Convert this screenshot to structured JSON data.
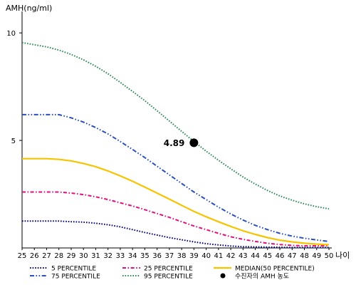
{
  "chart_data": {
    "type": "line",
    "ylabel": "AMH(ng/ml)",
    "xlabel": "나이",
    "x": [
      25,
      26,
      27,
      28,
      29,
      30,
      31,
      32,
      33,
      34,
      35,
      36,
      37,
      38,
      39,
      40,
      41,
      42,
      43,
      44,
      45,
      46,
      47,
      48,
      49,
      50
    ],
    "xlim": [
      25,
      50
    ],
    "ylim": [
      0,
      11
    ],
    "yticks": [
      5,
      10
    ],
    "grid": false,
    "legend_placement": "bottom",
    "series": [
      {
        "name": "5 PERCENTILE",
        "color": "#000080",
        "style": "dotted",
        "values": [
          1.25,
          1.25,
          1.25,
          1.25,
          1.22,
          1.2,
          1.15,
          1.08,
          0.98,
          0.85,
          0.72,
          0.6,
          0.48,
          0.38,
          0.28,
          0.2,
          0.14,
          0.09,
          0.06,
          0.05,
          0.04,
          0.03,
          0.02,
          0.02,
          0.02,
          0.02
        ]
      },
      {
        "name": "25 PERCENTILE",
        "color": "#e0117e",
        "style": "dashdot",
        "values": [
          2.6,
          2.6,
          2.6,
          2.6,
          2.55,
          2.48,
          2.38,
          2.25,
          2.1,
          1.95,
          1.78,
          1.6,
          1.42,
          1.22,
          1.02,
          0.85,
          0.68,
          0.52,
          0.4,
          0.3,
          0.22,
          0.16,
          0.12,
          0.1,
          0.1,
          0.1
        ]
      },
      {
        "name": "75 PERCENTILE",
        "color": "#2b4fbe",
        "style": "dashdotdot",
        "values": [
          6.2,
          6.2,
          6.2,
          6.2,
          6.05,
          5.85,
          5.6,
          5.3,
          4.95,
          4.58,
          4.2,
          3.8,
          3.4,
          3.0,
          2.6,
          2.25,
          1.9,
          1.58,
          1.3,
          1.05,
          0.85,
          0.68,
          0.55,
          0.45,
          0.37,
          0.3
        ]
      },
      {
        "name": "MEDIAN(50 PERCENTILE)",
        "color": "#f5c400",
        "style": "solid",
        "values": [
          4.15,
          4.15,
          4.15,
          4.12,
          4.05,
          3.93,
          3.78,
          3.58,
          3.35,
          3.1,
          2.83,
          2.55,
          2.27,
          1.98,
          1.7,
          1.45,
          1.22,
          1.0,
          0.8,
          0.63,
          0.48,
          0.36,
          0.28,
          0.22,
          0.18,
          0.15
        ]
      },
      {
        "name": "95 PERCENTILE",
        "color": "#2e8b57",
        "style": "dotted",
        "values": [
          9.55,
          9.45,
          9.35,
          9.2,
          9.0,
          8.75,
          8.45,
          8.1,
          7.7,
          7.28,
          6.85,
          6.38,
          5.9,
          5.42,
          4.95,
          4.5,
          4.08,
          3.68,
          3.3,
          2.97,
          2.67,
          2.42,
          2.22,
          2.05,
          1.92,
          1.82
        ]
      }
    ],
    "points": [
      {
        "name": "수진자의 AMH 농도",
        "x": 39,
        "y": 4.89,
        "label": "4.89",
        "color": "#000000"
      }
    ]
  }
}
